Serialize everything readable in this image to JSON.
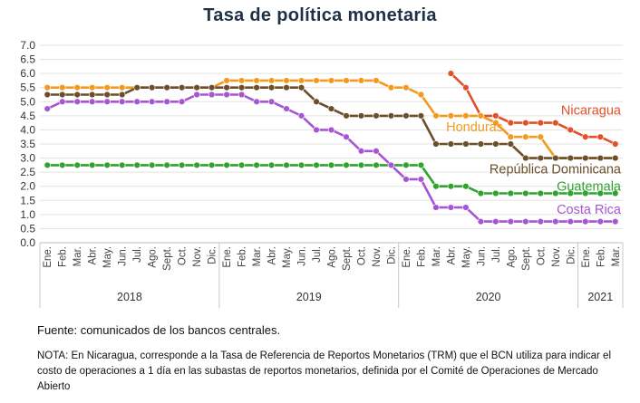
{
  "chart_data": {
    "type": "line",
    "title": "Tasa de política monetaria",
    "ylim": [
      0,
      7
    ],
    "yticks": [
      "0.0",
      "0.5",
      "1.0",
      "1.5",
      "2.0",
      "2.5",
      "3.0",
      "3.5",
      "4.0",
      "4.5",
      "5.0",
      "5.5",
      "6.0",
      "6.5",
      "7.0"
    ],
    "categories": [
      "Ene.",
      "Feb.",
      "Mar.",
      "Abr.",
      "May.",
      "Jun.",
      "Jul.",
      "Ago.",
      "Sept.",
      "Oct.",
      "Nov.",
      "Dic.",
      "Ene.",
      "Feb.",
      "Mar.",
      "Abr.",
      "May.",
      "Jun.",
      "Jul.",
      "Ago.",
      "Sept.",
      "Oct.",
      "Nov.",
      "Dic.",
      "Ene.",
      "Feb.",
      "Mar.",
      "Abr.",
      "May.",
      "Jun.",
      "Jul.",
      "Ago.",
      "Sept.",
      "Oct.",
      "Nov.",
      "Dic.",
      "Ene.",
      "Feb.",
      "Mar."
    ],
    "years": [
      {
        "label": "2018",
        "start": 0,
        "end": 11
      },
      {
        "label": "2019",
        "start": 12,
        "end": 23
      },
      {
        "label": "2020",
        "start": 24,
        "end": 35
      },
      {
        "label": "2021",
        "start": 36,
        "end": 38
      }
    ],
    "grid": true,
    "series": [
      {
        "name": "Nicaragua",
        "color": "#e0512a",
        "values": [
          null,
          null,
          null,
          null,
          null,
          null,
          null,
          null,
          null,
          null,
          null,
          null,
          null,
          null,
          null,
          null,
          null,
          null,
          null,
          null,
          null,
          null,
          null,
          null,
          null,
          null,
          null,
          6.0,
          5.5,
          4.5,
          4.5,
          4.25,
          4.25,
          4.25,
          4.25,
          4.0,
          3.75,
          3.75,
          3.5
        ]
      },
      {
        "name": "Honduras",
        "color": "#f29a1f",
        "values": [
          5.5,
          5.5,
          5.5,
          5.5,
          5.5,
          5.5,
          5.5,
          5.5,
          5.5,
          5.5,
          5.5,
          5.5,
          5.75,
          5.75,
          5.75,
          5.75,
          5.75,
          5.75,
          5.75,
          5.75,
          5.75,
          5.75,
          5.75,
          5.5,
          5.5,
          5.25,
          4.5,
          4.5,
          4.5,
          4.5,
          4.25,
          3.75,
          3.75,
          3.75,
          3.0,
          3.0,
          3.0,
          3.0,
          3.0
        ]
      },
      {
        "name": "República Dominicana",
        "color": "#6b4f2a",
        "values": [
          5.25,
          5.25,
          5.25,
          5.25,
          5.25,
          5.25,
          5.5,
          5.5,
          5.5,
          5.5,
          5.5,
          5.5,
          5.5,
          5.5,
          5.5,
          5.5,
          5.5,
          5.5,
          5.0,
          4.75,
          4.5,
          4.5,
          4.5,
          4.5,
          4.5,
          4.5,
          3.5,
          3.5,
          3.5,
          3.5,
          3.5,
          3.5,
          3.0,
          3.0,
          3.0,
          3.0,
          3.0,
          3.0,
          3.0
        ]
      },
      {
        "name": "Guatemala",
        "color": "#2ea32e",
        "values": [
          2.75,
          2.75,
          2.75,
          2.75,
          2.75,
          2.75,
          2.75,
          2.75,
          2.75,
          2.75,
          2.75,
          2.75,
          2.75,
          2.75,
          2.75,
          2.75,
          2.75,
          2.75,
          2.75,
          2.75,
          2.75,
          2.75,
          2.75,
          2.75,
          2.75,
          2.75,
          2.0,
          2.0,
          2.0,
          1.75,
          1.75,
          1.75,
          1.75,
          1.75,
          1.75,
          1.75,
          1.75,
          1.75,
          1.75
        ]
      },
      {
        "name": "Costa Rica",
        "color": "#a855d4",
        "values": [
          4.75,
          5.0,
          5.0,
          5.0,
          5.0,
          5.0,
          5.0,
          5.0,
          5.0,
          5.0,
          5.25,
          5.25,
          5.25,
          5.25,
          5.0,
          5.0,
          4.75,
          4.5,
          4.0,
          4.0,
          3.75,
          3.25,
          3.25,
          2.75,
          2.25,
          2.25,
          1.25,
          1.25,
          1.25,
          0.75,
          0.75,
          0.75,
          0.75,
          0.75,
          0.75,
          0.75,
          0.75,
          0.75,
          0.75
        ]
      }
    ]
  },
  "source": "Fuente: comunicados de los bancos centrales.",
  "note": "NOTA: En Nicaragua, corresponde a la Tasa de Referencia de Reportos Monetarios (TRM) que el BCN utiliza para indicar el costo de operaciones a 1 día en las subastas de reportos monetarios, definida por el Comité de Operaciones de Mercado Abierto"
}
